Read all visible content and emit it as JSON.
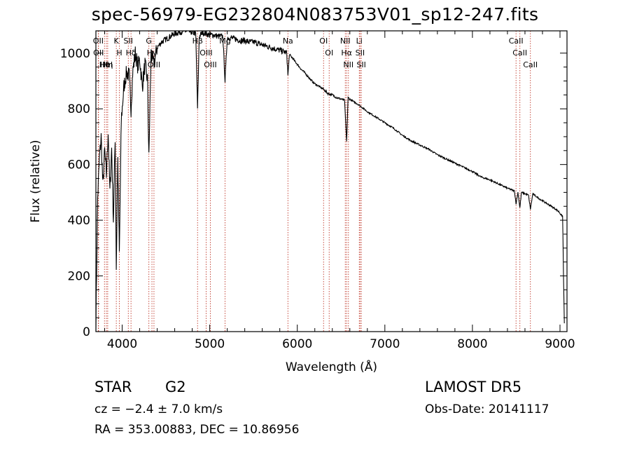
{
  "title": "spec-56979-EG232804N083753V01_sp12-247.fits",
  "info": {
    "object_class": "STAR",
    "subclass": "G2",
    "survey": "LAMOST DR5",
    "cz": "cz = −2.4 ± 7.0 km/s",
    "obs_date": "Obs-Date: 20141117",
    "radec": "RA = 353.00883, DEC =  10.86956"
  },
  "chart_data": {
    "type": "line",
    "title": "spec-56979-EG232804N083753V01_sp12-247.fits",
    "xlabel": "Wavelength (Å)",
    "ylabel": "Flux (relative)",
    "xlim": [
      3700,
      9080
    ],
    "ylim": [
      0,
      1080
    ],
    "xticks": [
      4000,
      5000,
      6000,
      7000,
      8000,
      9000
    ],
    "yticks": [
      0,
      200,
      400,
      600,
      800,
      1000
    ],
    "grid": false,
    "line_color": "#000000",
    "marker_color": "#c0392b",
    "spectrum": {
      "x": [
        3700,
        3720,
        3740,
        3760,
        3780,
        3800,
        3820,
        3840,
        3860,
        3880,
        3900,
        3920,
        3933,
        3950,
        3968,
        3990,
        4020,
        4050,
        4080,
        4101,
        4120,
        4150,
        4180,
        4200,
        4230,
        4260,
        4290,
        4305,
        4330,
        4360,
        4400,
        4450,
        4500,
        4550,
        4600,
        4650,
        4700,
        4750,
        4800,
        4840,
        4861,
        4880,
        4920,
        4960,
        5000,
        5050,
        5100,
        5150,
        5175,
        5200,
        5250,
        5300,
        5350,
        5400,
        5450,
        5500,
        5550,
        5600,
        5650,
        5700,
        5750,
        5800,
        5850,
        5880,
        5893,
        5910,
        5950,
        6000,
        6050,
        6100,
        6150,
        6200,
        6250,
        6300,
        6350,
        6400,
        6450,
        6500,
        6540,
        6563,
        6580,
        6620,
        6700,
        6800,
        6900,
        7000,
        7100,
        7200,
        7300,
        7400,
        7500,
        7600,
        7700,
        7800,
        7900,
        8000,
        8100,
        8200,
        8300,
        8400,
        8480,
        8498,
        8520,
        8542,
        8560,
        8600,
        8640,
        8662,
        8690,
        8750,
        8800,
        8850,
        8900,
        8950,
        8990,
        9010,
        9030,
        9040,
        9050
      ],
      "y": [
        30,
        480,
        620,
        700,
        520,
        650,
        560,
        720,
        500,
        660,
        400,
        700,
        230,
        620,
        280,
        760,
        880,
        930,
        920,
        800,
        930,
        1000,
        950,
        980,
        880,
        960,
        900,
        620,
        1000,
        960,
        1020,
        1040,
        1050,
        1060,
        1070,
        1075,
        1080,
        1078,
        1075,
        1070,
        800,
        1060,
        1075,
        1070,
        1065,
        1065,
        1060,
        1060,
        900,
        1055,
        1055,
        1050,
        1045,
        1045,
        1040,
        1040,
        1035,
        1030,
        1025,
        1020,
        1015,
        1010,
        1005,
        1000,
        920,
        995,
        980,
        960,
        940,
        925,
        905,
        890,
        880,
        870,
        855,
        850,
        840,
        835,
        830,
        680,
        840,
        830,
        815,
        790,
        770,
        750,
        730,
        705,
        685,
        670,
        655,
        635,
        620,
        605,
        590,
        575,
        555,
        545,
        530,
        515,
        505,
        460,
        500,
        445,
        500,
        495,
        490,
        440,
        495,
        480,
        470,
        460,
        450,
        440,
        430,
        420,
        415,
        200,
        30
      ]
    },
    "lines": [
      {
        "label": "Hθ",
        "x": 3798
      },
      {
        "label": "OII",
        "x": 3727
      },
      {
        "label": "OII",
        "x": 3730
      },
      {
        "label": "HeI",
        "x": 3820
      },
      {
        "label": "Hη",
        "x": 3835
      },
      {
        "label": "K",
        "x": 3933
      },
      {
        "label": "H",
        "x": 3968
      },
      {
        "label": "SII",
        "x": 4070
      },
      {
        "label": "Hδ",
        "x": 4101
      },
      {
        "label": "OIII",
        "x": 4363
      },
      {
        "label": "Hγ",
        "x": 4340
      },
      {
        "label": "G",
        "x": 4305
      },
      {
        "label": "Hβ",
        "x": 4861
      },
      {
        "label": "OIII",
        "x": 4959
      },
      {
        "label": "OIII",
        "x": 5007
      },
      {
        "label": "Mg",
        "x": 5175
      },
      {
        "label": "Na",
        "x": 5893
      },
      {
        "label": "OI",
        "x": 6300
      },
      {
        "label": "OI",
        "x": 6364
      },
      {
        "label": "Hα",
        "x": 6563
      },
      {
        "label": "NII",
        "x": 6548
      },
      {
        "label": "NII",
        "x": 6584
      },
      {
        "label": "SII",
        "x": 6717
      },
      {
        "label": "Li",
        "x": 6708
      },
      {
        "label": "SII",
        "x": 6731
      },
      {
        "label": "CaII",
        "x": 8498
      },
      {
        "label": "CaII",
        "x": 8542
      },
      {
        "label": "CaII",
        "x": 8662
      }
    ]
  }
}
